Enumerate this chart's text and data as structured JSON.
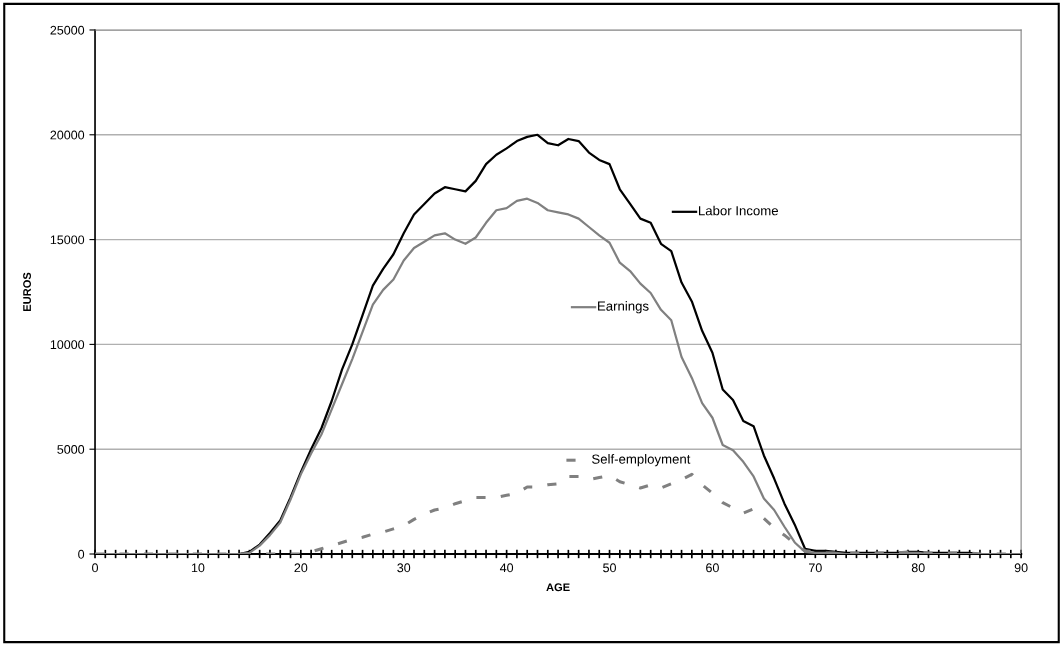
{
  "chart_data": {
    "type": "line",
    "xlabel": "AGE",
    "ylabel": "EUROS",
    "x": [
      0,
      1,
      2,
      3,
      4,
      5,
      6,
      7,
      8,
      9,
      10,
      11,
      12,
      13,
      14,
      15,
      16,
      17,
      18,
      19,
      20,
      21,
      22,
      23,
      24,
      25,
      26,
      27,
      28,
      29,
      30,
      31,
      32,
      33,
      34,
      35,
      36,
      37,
      38,
      39,
      40,
      41,
      42,
      43,
      44,
      45,
      46,
      47,
      48,
      49,
      50,
      51,
      52,
      53,
      54,
      55,
      56,
      57,
      58,
      59,
      60,
      61,
      62,
      63,
      64,
      65,
      66,
      67,
      68,
      69,
      70,
      71,
      72,
      73,
      74,
      75,
      76,
      77,
      78,
      79,
      80,
      81,
      82,
      83,
      84,
      85,
      86,
      87,
      88,
      89,
      90
    ],
    "series": [
      {
        "name": "Labor Income",
        "color": "#000000",
        "line_style": "solid",
        "values": [
          0,
          0,
          0,
          0,
          0,
          0,
          0,
          0,
          0,
          0,
          0,
          0,
          0,
          0,
          0,
          100,
          450,
          1000,
          1600,
          2700,
          3900,
          5000,
          6000,
          7300,
          8800,
          10000,
          11400,
          12800,
          13600,
          14300,
          15300,
          16200,
          16700,
          17200,
          17500,
          17400,
          17300,
          17800,
          18600,
          19050,
          19350,
          19700,
          19900,
          20000,
          19600,
          19500,
          19800,
          19700,
          19150,
          18800,
          18600,
          17400,
          16700,
          16000,
          15800,
          14800,
          14450,
          12950,
          12050,
          10650,
          9600,
          7850,
          7350,
          6350,
          6100,
          4700,
          3600,
          2400,
          1400,
          250,
          150,
          150,
          100,
          50,
          50,
          50,
          50,
          50,
          50,
          100,
          100,
          50,
          50,
          50,
          50,
          50,
          0,
          0,
          0,
          0,
          0
        ]
      },
      {
        "name": "Earnings",
        "color": "#808080",
        "line_style": "solid",
        "values": [
          0,
          0,
          0,
          0,
          0,
          0,
          0,
          0,
          0,
          0,
          0,
          0,
          0,
          0,
          0,
          50,
          400,
          900,
          1500,
          2600,
          3800,
          4800,
          5700,
          6900,
          8100,
          9300,
          10600,
          11900,
          12600,
          13100,
          14000,
          14600,
          14900,
          15200,
          15300,
          15000,
          14800,
          15100,
          15800,
          16400,
          16500,
          16850,
          16950,
          16750,
          16400,
          16300,
          16200,
          16000,
          15600,
          15200,
          14850,
          13900,
          13500,
          12900,
          12450,
          11650,
          11150,
          9400,
          8400,
          7200,
          6500,
          5200,
          4950,
          4400,
          3700,
          2650,
          2100,
          1300,
          550,
          100,
          50,
          50,
          50,
          0,
          0,
          0,
          0,
          0,
          0,
          50,
          50,
          0,
          0,
          0,
          0,
          0,
          0,
          0,
          0,
          0,
          0
        ]
      },
      {
        "name": "Self-employment",
        "color": "#808080",
        "line_style": "dashed",
        "values": [
          0,
          0,
          0,
          0,
          0,
          0,
          0,
          0,
          0,
          0,
          0,
          0,
          0,
          0,
          0,
          0,
          0,
          0,
          0,
          0,
          0,
          100,
          250,
          400,
          550,
          700,
          800,
          950,
          1050,
          1200,
          1350,
          1650,
          1900,
          2100,
          2200,
          2400,
          2550,
          2700,
          2700,
          2700,
          2800,
          2900,
          3200,
          3200,
          3300,
          3350,
          3700,
          3700,
          3550,
          3650,
          3750,
          3450,
          3300,
          3150,
          3300,
          3150,
          3350,
          3550,
          3800,
          3300,
          2900,
          2450,
          2200,
          1950,
          2150,
          1700,
          1250,
          900,
          500,
          150,
          100,
          50,
          50,
          50,
          50,
          50,
          50,
          50,
          50,
          100,
          100,
          50,
          50,
          50,
          50,
          50,
          0,
          0,
          0,
          0,
          0
        ]
      }
    ],
    "xlim": [
      0,
      90
    ],
    "xticks": [
      0,
      {
        "value": 1,
        "label": null
      },
      {
        "value": 2,
        "label": null
      },
      {
        "value": 3,
        "label": null
      },
      {
        "value": 4,
        "label": null
      },
      {
        "value": 5,
        "label": null
      },
      {
        "value": 6,
        "label": null
      },
      {
        "value": 7,
        "label": null
      },
      {
        "value": 8,
        "label": null
      },
      {
        "value": 9,
        "label": null
      },
      10,
      {
        "value": 11,
        "label": null
      },
      {
        "value": 12,
        "label": null
      },
      {
        "value": 13,
        "label": null
      },
      {
        "value": 14,
        "label": null
      },
      {
        "value": 15,
        "label": null
      },
      {
        "value": 16,
        "label": null
      },
      {
        "value": 17,
        "label": null
      },
      {
        "value": 18,
        "label": null
      },
      {
        "value": 19,
        "label": null
      },
      20,
      {
        "value": 21,
        "label": null
      },
      {
        "value": 22,
        "label": null
      },
      {
        "value": 23,
        "label": null
      },
      {
        "value": 24,
        "label": null
      },
      {
        "value": 25,
        "label": null
      },
      {
        "value": 26,
        "label": null
      },
      {
        "value": 27,
        "label": null
      },
      {
        "value": 28,
        "label": null
      },
      {
        "value": 29,
        "label": null
      },
      30,
      {
        "value": 31,
        "label": null
      },
      {
        "value": 32,
        "label": null
      },
      {
        "value": 33,
        "label": null
      },
      {
        "value": 34,
        "label": null
      },
      {
        "value": 35,
        "label": null
      },
      {
        "value": 36,
        "label": null
      },
      {
        "value": 37,
        "label": null
      },
      {
        "value": 38,
        "label": null
      },
      {
        "value": 39,
        "label": null
      },
      40,
      {
        "value": 41,
        "label": null
      },
      {
        "value": 42,
        "label": null
      },
      {
        "value": 43,
        "label": null
      },
      {
        "value": 44,
        "label": null
      },
      {
        "value": 45,
        "label": null
      },
      {
        "value": 46,
        "label": null
      },
      {
        "value": 47,
        "label": null
      },
      {
        "value": 48,
        "label": null
      },
      {
        "value": 49,
        "label": null
      },
      50,
      {
        "value": 51,
        "label": null
      },
      {
        "value": 52,
        "label": null
      },
      {
        "value": 53,
        "label": null
      },
      {
        "value": 54,
        "label": null
      },
      {
        "value": 55,
        "label": null
      },
      {
        "value": 56,
        "label": null
      },
      {
        "value": 57,
        "label": null
      },
      {
        "value": 58,
        "label": null
      },
      {
        "value": 59,
        "label": null
      },
      60,
      {
        "value": 61,
        "label": null
      },
      {
        "value": 62,
        "label": null
      },
      {
        "value": 63,
        "label": null
      },
      {
        "value": 64,
        "label": null
      },
      {
        "value": 65,
        "label": null
      },
      {
        "value": 66,
        "label": null
      },
      {
        "value": 67,
        "label": null
      },
      {
        "value": 68,
        "label": null
      },
      {
        "value": 69,
        "label": null
      },
      70,
      {
        "value": 71,
        "label": null
      },
      {
        "value": 72,
        "label": null
      },
      {
        "value": 73,
        "label": null
      },
      {
        "value": 74,
        "label": null
      },
      {
        "value": 75,
        "label": null
      },
      {
        "value": 76,
        "label": null
      },
      {
        "value": 77,
        "label": null
      },
      {
        "value": 78,
        "label": null
      },
      {
        "value": 79,
        "label": null
      },
      80,
      {
        "value": 81,
        "label": null
      },
      {
        "value": 82,
        "label": null
      },
      {
        "value": 83,
        "label": null
      },
      {
        "value": 84,
        "label": null
      },
      {
        "value": 85,
        "label": null
      },
      {
        "value": 86,
        "label": null
      },
      {
        "value": 87,
        "label": null
      },
      {
        "value": 88,
        "label": null
      },
      {
        "value": 89,
        "label": null
      },
      90
    ],
    "ylim": [
      0,
      25000
    ],
    "yticks": [
      0,
      5000,
      10000,
      15000,
      20000,
      25000
    ],
    "grid": "y",
    "marker": "none",
    "legend": "right"
  }
}
